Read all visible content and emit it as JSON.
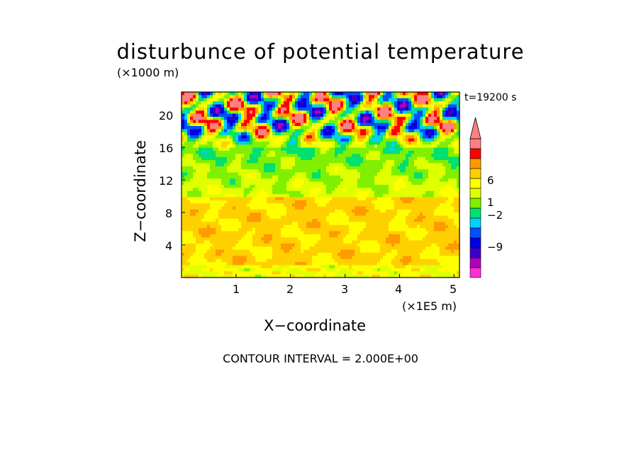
{
  "chart_data": {
    "type": "heatmap",
    "title": "disturbunce of potential temperature",
    "xlabel": "X−coordinate",
    "ylabel": "Z−coordinate",
    "x_unit": "(×1E5 m)",
    "y_unit": "(×1000 m)",
    "time_label": "t=19200 s",
    "footer": "CONTOUR INTERVAL = 2.000E+00",
    "xlim": [
      0,
      5.1
    ],
    "ylim": [
      0,
      22.8
    ],
    "x_ticks": [
      "1",
      "2",
      "3",
      "4",
      "5"
    ],
    "y_ticks": [
      "4",
      "8",
      "12",
      "16",
      "20"
    ],
    "colorbar": {
      "levels": [
        -13,
        -11,
        -9,
        -7,
        -5,
        -3,
        -2,
        -1,
        0,
        1,
        2,
        3,
        4,
        6,
        8,
        10
      ],
      "labeled_ticks": [
        "6",
        "1",
        "−2",
        "−9"
      ],
      "colors": [
        "#ff2fd2",
        "#b000c0",
        "#3c00c8",
        "#0000e6",
        "#0050ff",
        "#00d0ff",
        "#00e070",
        "#80f000",
        "#e0ff00",
        "#ffff00",
        "#ffd000",
        "#ff9a00",
        "#ff0000",
        "#ff8080"
      ]
    },
    "field_description": {
      "upper_band": "large negative and positive anomalies between z=16 and z=23",
      "middle_band": "near zero (yellow/green) between z=10 and z=16",
      "lower_band": "small positive values (orange) between z=2 and z=10"
    }
  },
  "colors": {
    "background": "#ffffff",
    "frame": "#000000"
  }
}
